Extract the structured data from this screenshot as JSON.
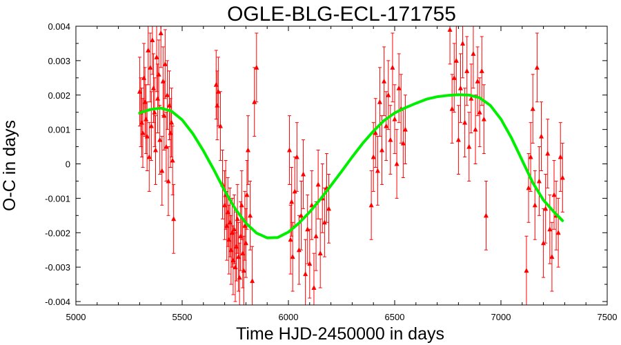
{
  "chart_data": {
    "type": "scatter",
    "title": "OGLE-BLG-ECL-171755",
    "xlabel": "Time HJD-2450000 in days",
    "ylabel": "O-C in days",
    "xlim": [
      5000,
      7500
    ],
    "ylim": [
      -0.0041,
      0.004
    ],
    "x_ticks": [
      "5000",
      "5500",
      "6000",
      "6500",
      "7000",
      "7500"
    ],
    "y_ticks": [
      "-0.004",
      "-0.003",
      "-0.002",
      "-0.001",
      "0",
      "0.001",
      "0.002",
      "0.003",
      "0.004"
    ],
    "grid": false,
    "colors": {
      "points": "#ff0000",
      "fit": "#00ee00",
      "frame": "#000000"
    },
    "series": [
      {
        "type": "scatter",
        "marker": "triangle",
        "x": [
          5300,
          5305,
          5310,
          5315,
          5320,
          5325,
          5330,
          5335,
          5340,
          5345,
          5350,
          5355,
          5360,
          5365,
          5370,
          5375,
          5380,
          5385,
          5390,
          5395,
          5400,
          5405,
          5410,
          5415,
          5420,
          5425,
          5430,
          5435,
          5440,
          5445,
          5450,
          5455,
          5460,
          5660,
          5665,
          5670,
          5680,
          5690,
          5700,
          5705,
          5710,
          5715,
          5720,
          5725,
          5730,
          5735,
          5740,
          5745,
          5750,
          5755,
          5760,
          5765,
          5770,
          5775,
          5780,
          5785,
          5790,
          5795,
          5800,
          5805,
          5810,
          5820,
          5830,
          5840,
          5850,
          6005,
          6010,
          6015,
          6020,
          6030,
          6040,
          6050,
          6060,
          6070,
          6080,
          6090,
          6100,
          6110,
          6120,
          6130,
          6140,
          6150,
          6160,
          6170,
          6180,
          6190,
          6390,
          6400,
          6410,
          6420,
          6430,
          6440,
          6450,
          6460,
          6470,
          6480,
          6490,
          6500,
          6510,
          6520,
          6530,
          6540,
          6550,
          6760,
          6770,
          6780,
          6790,
          6800,
          6810,
          6820,
          6830,
          6840,
          6850,
          6860,
          6870,
          6880,
          6890,
          6900,
          6910,
          6920,
          6930,
          7120,
          7130,
          7140,
          7150,
          7160,
          7170,
          7180,
          7190,
          7200,
          7210,
          7220,
          7230,
          7240,
          7250,
          7260,
          7270,
          7280,
          7290
        ],
        "y": [
          0.0021,
          0.0015,
          0.0012,
          0.0009,
          0.0025,
          0.0018,
          0.0013,
          0.0008,
          0.0033,
          0.0002,
          0.0028,
          0.0011,
          0.0036,
          0.0022,
          0.0015,
          0.0004,
          0.0031,
          0.0019,
          0.0026,
          0.0007,
          0.0038,
          -0.0002,
          0.0024,
          0.0014,
          0.0029,
          0.0005,
          0.002,
          -0.0005,
          0.0017,
          0.0009,
          0.0012,
          0.0001,
          -0.0016,
          0.0023,
          0.0017,
          0.0021,
          0.0011,
          -0.0006,
          -0.0012,
          -0.0009,
          -0.0018,
          -0.0014,
          -0.0022,
          -0.0017,
          -0.0025,
          -0.002,
          -0.0028,
          -0.0019,
          -0.003,
          -0.0024,
          -0.0016,
          -0.0027,
          -0.0033,
          -0.0021,
          -0.0012,
          -0.0026,
          -0.0031,
          -0.0018,
          -0.0023,
          -0.0009,
          0.0004,
          -0.0015,
          -0.0034,
          0.0018,
          0.0028,
          0.0004,
          -0.0022,
          -0.0011,
          -0.0027,
          -0.0008,
          0.0002,
          -0.0025,
          -0.0015,
          -0.0003,
          -0.0032,
          -0.0019,
          -0.0029,
          -0.0012,
          -0.0036,
          -0.0021,
          -0.0006,
          -0.0026,
          -0.001,
          -0.0017,
          -0.0007,
          -0.0013,
          -0.0012,
          0.0002,
          0.0009,
          -0.0002,
          0.0018,
          0.0004,
          0.0024,
          0.0011,
          0.002,
          0.0007,
          0.0028,
          0.0013,
          0.0,
          0.0022,
          0.0016,
          0.0006,
          0.001,
          0.0039,
          0.0016,
          0.0025,
          0.003,
          0.0007,
          0.0022,
          0.0035,
          0.0012,
          0.0027,
          0.0005,
          0.0019,
          0.0032,
          0.001,
          0.0024,
          0.0015,
          0.0027,
          0.0013,
          -0.0015,
          -0.0031,
          -0.0007,
          0.0002,
          0.0016,
          -0.0012,
          0.0028,
          -0.0005,
          0.0008,
          -0.0023,
          -0.0013,
          0.0003,
          -0.0019,
          -0.0027,
          -0.0009,
          -0.0015,
          -0.002,
          0.0002,
          -0.0004
        ],
        "error": 0.001
      },
      {
        "type": "line",
        "x": [
          5300,
          5350,
          5400,
          5450,
          5500,
          5550,
          5600,
          5650,
          5700,
          5750,
          5800,
          5850,
          5900,
          5950,
          6000,
          6050,
          6100,
          6150,
          6200,
          6250,
          6300,
          6350,
          6400,
          6450,
          6500,
          6550,
          6600,
          6650,
          6700,
          6750,
          6800,
          6850,
          6900,
          6950,
          7000,
          7050,
          7100,
          7150,
          7200,
          7250,
          7290
        ],
        "y": [
          0.00148,
          0.00158,
          0.00162,
          0.00153,
          0.00128,
          0.00088,
          0.00038,
          -0.00018,
          -0.00078,
          -0.00131,
          -0.00172,
          -0.00201,
          -0.00215,
          -0.00214,
          -0.00198,
          -0.00172,
          -0.0014,
          -0.00103,
          -0.00063,
          -0.00022,
          0.0002,
          0.0006,
          0.00095,
          0.00126,
          0.00148,
          0.00163,
          0.00176,
          0.00188,
          0.00195,
          0.00199,
          0.00201,
          0.002,
          0.00192,
          0.0017,
          0.0013,
          0.00075,
          0.0001,
          -0.00055,
          -0.00105,
          -0.0014,
          -0.00165
        ]
      }
    ]
  }
}
